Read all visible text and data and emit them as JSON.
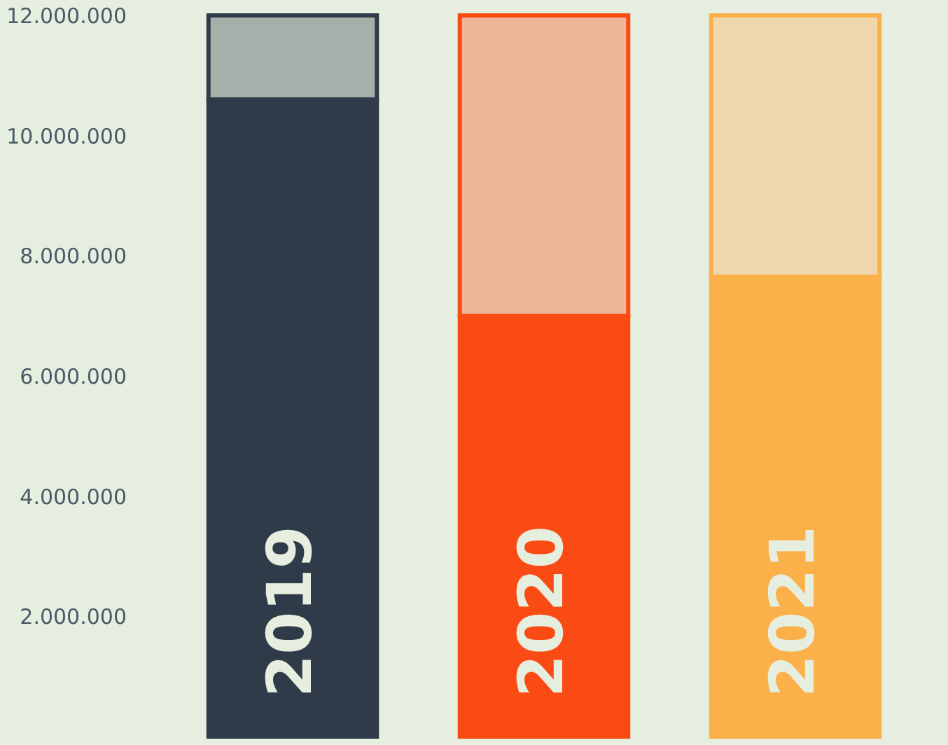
{
  "chart_data": {
    "type": "bar",
    "stacked": true,
    "categories": [
      "2019",
      "2020",
      "2021"
    ],
    "series": [
      {
        "colors": [
          "#2f3b48",
          "#fb4b14",
          "#fbb04a"
        ],
        "values": [
          10600000,
          7000000,
          7650000
        ]
      },
      {
        "colors": [
          "#2f3b48",
          "#fb4b14",
          "#fbb04a"
        ],
        "values": [
          1400000,
          5000000,
          4350000
        ]
      }
    ],
    "ylim": [
      0,
      12000000
    ],
    "yticks": [
      {
        "value": 2000000,
        "label": "2.000.000"
      },
      {
        "value": 4000000,
        "label": "4.000.000"
      },
      {
        "value": 6000000,
        "label": "6.000.000"
      },
      {
        "value": 8000000,
        "label": "8.000.000"
      },
      {
        "value": 10000000,
        "label": "10.000.000"
      },
      {
        "value": 12000000,
        "label": "12.000.000"
      }
    ],
    "grid": false
  }
}
